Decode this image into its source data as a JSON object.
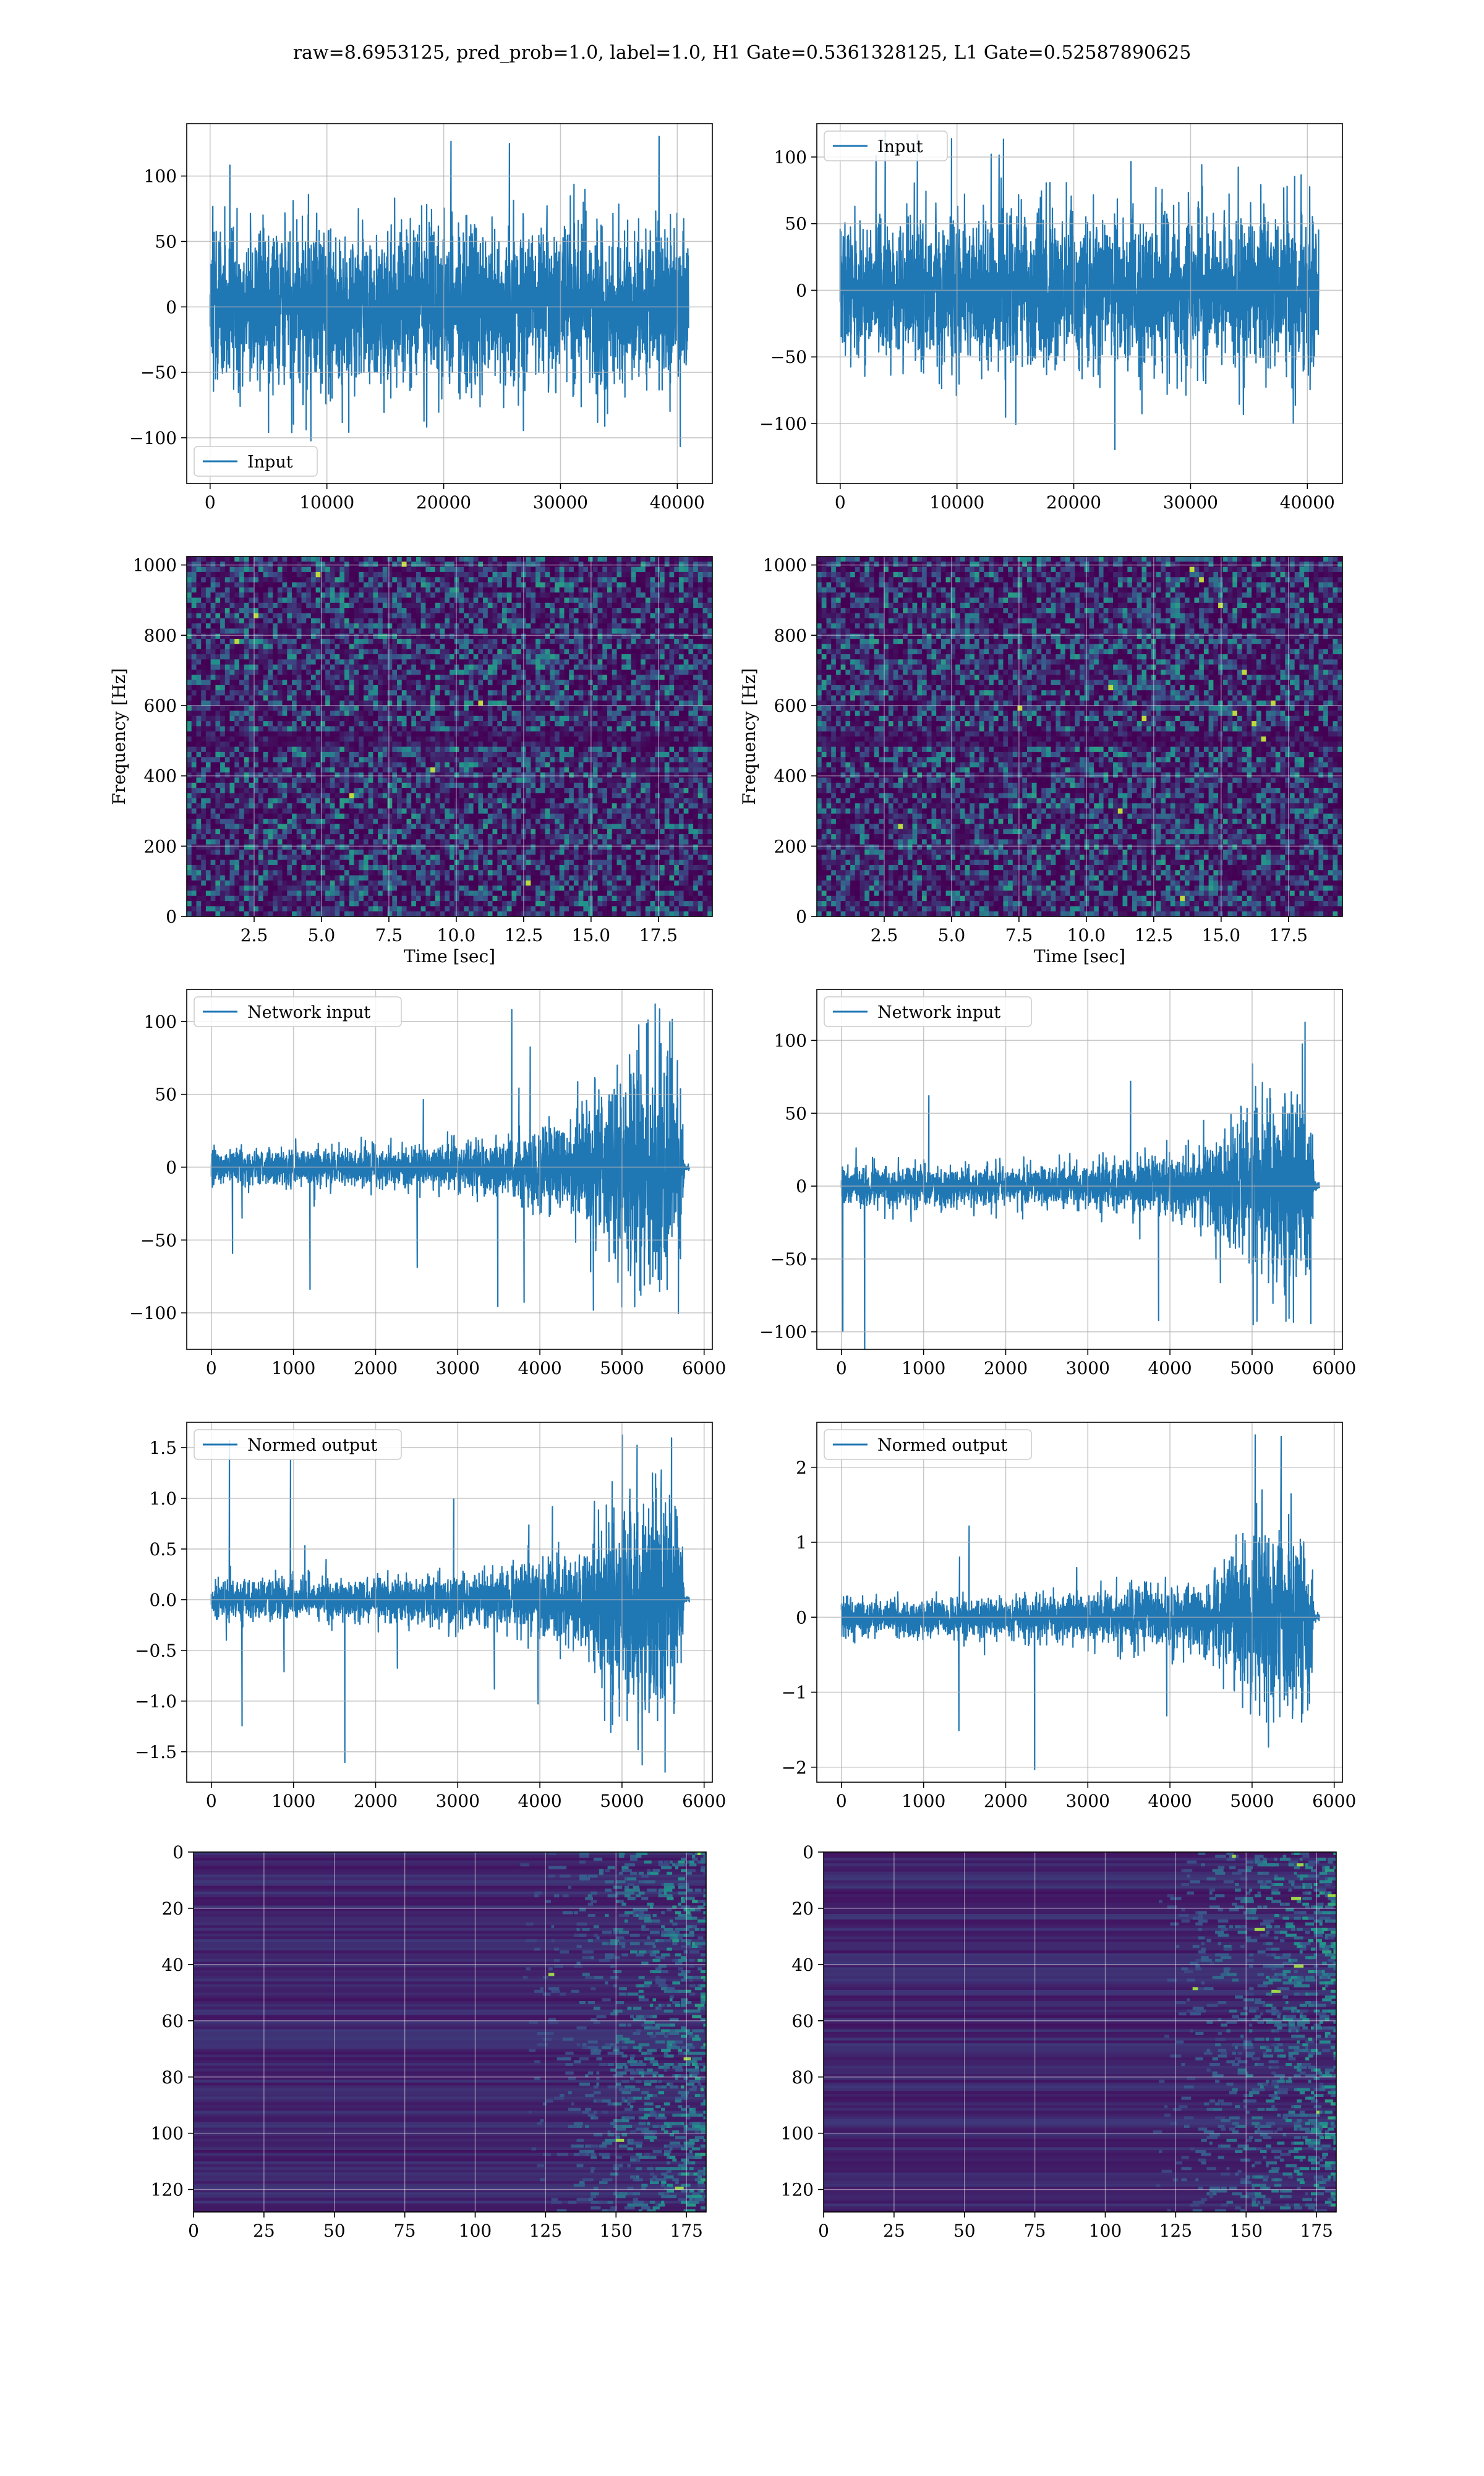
{
  "figure": {
    "suptitle": "raw=8.6953125, pred_prob=1.0, label=1.0, H1 Gate=0.5361328125, L1 Gate=0.52587890625"
  },
  "colors": {
    "line": "#1f77b4",
    "grid": "#b0b0b0",
    "viridis_low": "#440154",
    "viridis_high": "#fde725"
  },
  "chart_data": [
    {
      "id": "h1-input",
      "type": "line",
      "xlim": [
        -2000,
        43000
      ],
      "ylim": [
        -135,
        140
      ],
      "xticks": [
        0,
        10000,
        20000,
        30000,
        40000
      ],
      "yticks": [
        -100,
        -50,
        0,
        50,
        100
      ],
      "legend": "lower-left",
      "series": [
        {
          "name": "Input",
          "x_range": [
            0,
            40960
          ],
          "envelope": [
            {
              "x": 0,
              "amp": 70
            },
            {
              "x": 40960,
              "amp": 70
            }
          ],
          "peak_abs": 135
        }
      ],
      "grid": true,
      "xlabel": "",
      "ylabel": ""
    },
    {
      "id": "l1-input",
      "type": "line",
      "xlim": [
        -2000,
        43000
      ],
      "ylim": [
        -145,
        125
      ],
      "xticks": [
        0,
        10000,
        20000,
        30000,
        40000
      ],
      "yticks": [
        -100,
        -50,
        0,
        50,
        100
      ],
      "legend": "top-left",
      "series": [
        {
          "name": "Input",
          "x_range": [
            0,
            40960
          ],
          "envelope": [
            {
              "x": 0,
              "amp": 65
            },
            {
              "x": 40960,
              "amp": 65
            }
          ],
          "peak_abs": 120
        }
      ],
      "grid": true,
      "xlabel": "",
      "ylabel": ""
    },
    {
      "id": "h1-spectrogram",
      "type": "heatmap",
      "xlim": [
        0,
        19.5
      ],
      "ylim": [
        0,
        1024
      ],
      "xticks": [
        2.5,
        5.0,
        7.5,
        10.0,
        12.5,
        15.0,
        17.5
      ],
      "yticks": [
        0,
        200,
        400,
        600,
        800,
        1000
      ],
      "xlabel": "Time [sec]",
      "ylabel": "Frequency [Hz]",
      "grid": true,
      "colormap": "viridis"
    },
    {
      "id": "l1-spectrogram",
      "type": "heatmap",
      "xlim": [
        0,
        19.5
      ],
      "ylim": [
        0,
        1024
      ],
      "xticks": [
        2.5,
        5.0,
        7.5,
        10.0,
        12.5,
        15.0,
        17.5
      ],
      "yticks": [
        0,
        200,
        400,
        600,
        800,
        1000
      ],
      "xlabel": "Time [sec]",
      "ylabel": "Frequency [Hz]",
      "grid": true,
      "colormap": "viridis"
    },
    {
      "id": "h1-network-input",
      "type": "line",
      "xlim": [
        -300,
        6100
      ],
      "ylim": [
        -125,
        122
      ],
      "xticks": [
        0,
        1000,
        2000,
        3000,
        4000,
        5000,
        6000
      ],
      "yticks": [
        -100,
        -50,
        0,
        50,
        100
      ],
      "legend": "top-left",
      "series": [
        {
          "name": "Network input",
          "x_range": [
            0,
            5820
          ],
          "envelope": [
            {
              "x": 0,
              "amp": 14
            },
            {
              "x": 2500,
              "amp": 16
            },
            {
              "x": 3500,
              "amp": 22
            },
            {
              "x": 4500,
              "amp": 38
            },
            {
              "x": 4700,
              "amp": 60
            },
            {
              "x": 5100,
              "amp": 85
            },
            {
              "x": 5500,
              "amp": 95
            },
            {
              "x": 5720,
              "amp": 80
            },
            {
              "x": 5760,
              "amp": 3
            },
            {
              "x": 5820,
              "amp": 2
            }
          ],
          "peak_abs": 112
        }
      ],
      "grid": true,
      "xlabel": "",
      "ylabel": ""
    },
    {
      "id": "l1-network-input",
      "type": "line",
      "xlim": [
        -300,
        6100
      ],
      "ylim": [
        -112,
        135
      ],
      "xticks": [
        0,
        1000,
        2000,
        3000,
        4000,
        5000,
        6000
      ],
      "yticks": [
        -100,
        -50,
        0,
        50,
        100
      ],
      "legend": "top-left",
      "series": [
        {
          "name": "Network input",
          "x_range": [
            0,
            5820
          ],
          "envelope": [
            {
              "x": 0,
              "amp": 16
            },
            {
              "x": 2500,
              "amp": 16
            },
            {
              "x": 3500,
              "amp": 22
            },
            {
              "x": 4500,
              "amp": 30
            },
            {
              "x": 4700,
              "amp": 50
            },
            {
              "x": 5100,
              "amp": 70
            },
            {
              "x": 5500,
              "amp": 78
            },
            {
              "x": 5720,
              "amp": 60
            },
            {
              "x": 5760,
              "amp": 4
            },
            {
              "x": 5820,
              "amp": 3
            }
          ],
          "peak_abs": 123
        }
      ],
      "grid": true,
      "xlabel": "",
      "ylabel": ""
    },
    {
      "id": "h1-normed-output",
      "type": "line",
      "xlim": [
        -300,
        6100
      ],
      "ylim": [
        -1.8,
        1.75
      ],
      "xticks": [
        0,
        1000,
        2000,
        3000,
        4000,
        5000,
        6000
      ],
      "yticks": [
        -1.5,
        -1.0,
        -0.5,
        0.0,
        0.5,
        1.0,
        1.5
      ],
      "legend": "top-left",
      "series": [
        {
          "name": "Normed output",
          "x_range": [
            0,
            5820
          ],
          "envelope": [
            {
              "x": 0,
              "amp": 0.22
            },
            {
              "x": 2500,
              "amp": 0.24
            },
            {
              "x": 3500,
              "amp": 0.32
            },
            {
              "x": 4500,
              "amp": 0.55
            },
            {
              "x": 4700,
              "amp": 0.9
            },
            {
              "x": 5100,
              "amp": 1.25
            },
            {
              "x": 5500,
              "amp": 1.35
            },
            {
              "x": 5720,
              "amp": 1.1
            },
            {
              "x": 5760,
              "amp": 0.04
            },
            {
              "x": 5820,
              "amp": 0.03
            }
          ],
          "peak_abs": 1.7
        }
      ],
      "grid": true,
      "xlabel": "",
      "ylabel": ""
    },
    {
      "id": "l1-normed-output",
      "type": "line",
      "xlim": [
        -300,
        6100
      ],
      "ylim": [
        -2.2,
        2.6
      ],
      "xticks": [
        0,
        1000,
        2000,
        3000,
        4000,
        5000,
        6000
      ],
      "yticks": [
        -2,
        -1,
        0,
        1,
        2
      ],
      "legend": "top-left",
      "series": [
        {
          "name": "Normed output",
          "x_range": [
            0,
            5820
          ],
          "envelope": [
            {
              "x": 0,
              "amp": 0.3
            },
            {
              "x": 2500,
              "amp": 0.32
            },
            {
              "x": 3500,
              "amp": 0.42
            },
            {
              "x": 4500,
              "amp": 0.6
            },
            {
              "x": 4700,
              "amp": 1.0
            },
            {
              "x": 5100,
              "amp": 1.4
            },
            {
              "x": 5500,
              "amp": 1.55
            },
            {
              "x": 5720,
              "amp": 1.2
            },
            {
              "x": 5760,
              "amp": 0.06
            },
            {
              "x": 5820,
              "amp": 0.05
            }
          ],
          "peak_abs": 2.5
        }
      ],
      "grid": true,
      "xlabel": "",
      "ylabel": ""
    },
    {
      "id": "h1-feature-map",
      "type": "heatmap",
      "xlim": [
        0,
        182
      ],
      "ylim": [
        128,
        0
      ],
      "xticks": [
        0,
        25,
        50,
        75,
        100,
        125,
        150,
        175
      ],
      "yticks": [
        0,
        20,
        40,
        60,
        80,
        100,
        120
      ],
      "activity_onset": 125,
      "grid": true,
      "colormap": "viridis",
      "xlabel": "",
      "ylabel": ""
    },
    {
      "id": "l1-feature-map",
      "type": "heatmap",
      "xlim": [
        0,
        182
      ],
      "ylim": [
        128,
        0
      ],
      "xticks": [
        0,
        25,
        50,
        75,
        100,
        125,
        150,
        175
      ],
      "yticks": [
        0,
        20,
        40,
        60,
        80,
        100,
        120
      ],
      "activity_onset": 125,
      "grid": true,
      "colormap": "viridis",
      "xlabel": "",
      "ylabel": ""
    }
  ]
}
